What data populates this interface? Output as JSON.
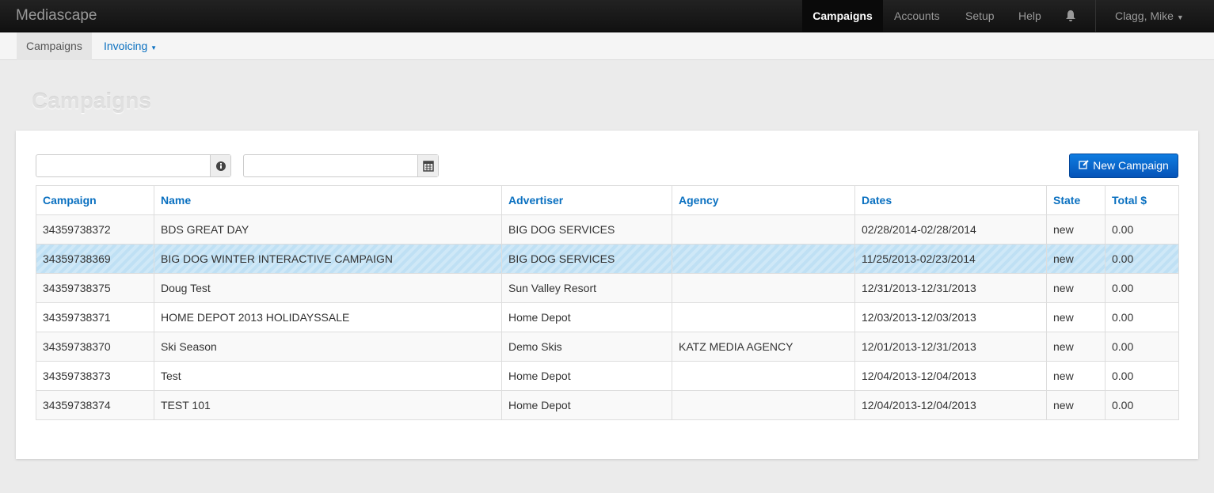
{
  "navbar": {
    "brand": "Mediascape",
    "items": [
      "Campaigns",
      "Accounts",
      "Setup",
      "Help"
    ],
    "user": "Clagg, Mike"
  },
  "subnav": {
    "items": [
      "Campaigns",
      "Invoicing"
    ]
  },
  "page": {
    "title": "Campaigns",
    "new_button": "New Campaign"
  },
  "table": {
    "headers": [
      "Campaign",
      "Name",
      "Advertiser",
      "Agency",
      "Dates",
      "State",
      "Total $"
    ],
    "rows": [
      [
        "34359738372",
        "BDS GREAT DAY",
        "BIG DOG SERVICES",
        "",
        "02/28/2014-02/28/2014",
        "new",
        "0.00"
      ],
      [
        "34359738369",
        "BIG DOG WINTER INTERACTIVE CAMPAIGN",
        "BIG DOG SERVICES",
        "",
        "11/25/2013-02/23/2014",
        "new",
        "0.00"
      ],
      [
        "34359738375",
        "Doug Test",
        "Sun Valley Resort",
        "",
        "12/31/2013-12/31/2013",
        "new",
        "0.00"
      ],
      [
        "34359738371",
        "HOME DEPOT 2013 HOLIDAYSSALE",
        "Home Depot",
        "",
        "12/03/2013-12/03/2013",
        "new",
        "0.00"
      ],
      [
        "34359738370",
        "Ski Season",
        "Demo Skis",
        "KATZ MEDIA AGENCY",
        "12/01/2013-12/31/2013",
        "new",
        "0.00"
      ],
      [
        "34359738373",
        "Test",
        "Home Depot",
        "",
        "12/04/2013-12/04/2013",
        "new",
        "0.00"
      ],
      [
        "34359738374",
        "TEST 101",
        "Home Depot",
        "",
        "12/04/2013-12/04/2013",
        "new",
        "0.00"
      ]
    ]
  }
}
